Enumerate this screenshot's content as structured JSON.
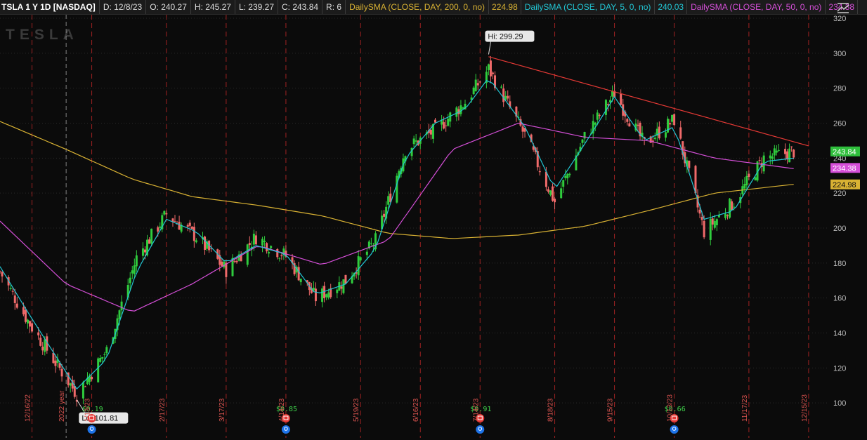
{
  "header": {
    "symbol": "TSLA 1 Y 1D [NASDAQ]",
    "date": "D: 12/8/23",
    "open": "O: 240.27",
    "high": "H: 245.27",
    "low": "L: 239.27",
    "close": "C: 243.84",
    "range": "R: 6",
    "sma200_label": "DailySMA (CLOSE, DAY, 200, 0, no)",
    "sma200_value": "224.98",
    "sma5_label": "DailySMA (CLOSE, DAY, 5, 0, no)",
    "sma5_value": "240.03",
    "sma50_label": "DailySMA (CLOSE, DAY, 50, 0, no)",
    "sma50_value": "234.38"
  },
  "watermark": "TESLA",
  "colors": {
    "up": "#2fcc3d",
    "down": "#f06a6a",
    "sma5": "#22c6d4",
    "sma50": "#d54fd8",
    "sma200": "#d9b233",
    "trendline": "#e53935",
    "grid_vertical": "#c62828",
    "price_badge": "#2fbf3c"
  },
  "chart_data": {
    "type": "line",
    "ylim": [
      80,
      320
    ],
    "yticks": [
      100,
      120,
      140,
      160,
      180,
      200,
      220,
      240,
      260,
      280,
      300,
      320
    ],
    "x_date_labels": [
      "12/16/22",
      "2022 year",
      "1/13/23",
      "2/17/23",
      "3/17/23",
      "4/14/23",
      "5/19/23",
      "6/16/23",
      "7/14/23",
      "8/18/23",
      "9/15/23",
      "10/13/23",
      "11/17/23",
      "12/15/23"
    ],
    "annotations": [
      {
        "label": "Hi: 299.29",
        "date": "7/18/23",
        "value": 299.29
      },
      {
        "label": "Lo: 101.81",
        "date": "1/6/23",
        "value": 101.81
      }
    ],
    "price_badges": [
      {
        "value": "243.84",
        "series": "close"
      },
      {
        "value": "234.38",
        "series": "sma50"
      },
      {
        "value": "224.98",
        "series": "sma200"
      }
    ],
    "dividends": [
      {
        "label": "$0.19",
        "date": "1/13/23"
      },
      {
        "label": "$0.85",
        "date": "4/14/23"
      },
      {
        "label": "$0.91",
        "date": "7/14/23"
      },
      {
        "label": "$0.66",
        "date": "10/13/23"
      }
    ],
    "trendline": {
      "from": {
        "date": "7/18/23",
        "value": 298
      },
      "to": {
        "date": "12/15/23",
        "value": 247
      }
    },
    "series": [
      {
        "name": "DailySMA (CLOSE, DAY, 200, 0, no)",
        "key": "sma200",
        "x": [
          "12/1/22",
          "1/1/23",
          "2/1/23",
          "3/1/23",
          "4/1/23",
          "5/1/23",
          "6/1/23",
          "7/1/23",
          "8/1/23",
          "9/1/23",
          "10/1/23",
          "11/1/23",
          "12/8/23"
        ],
        "values": [
          261,
          245,
          228,
          218,
          213,
          207,
          197,
          194,
          196,
          201,
          210,
          220,
          225
        ]
      },
      {
        "name": "DailySMA (CLOSE, DAY, 50, 0, no)",
        "key": "sma50",
        "x": [
          "12/1/22",
          "1/1/23",
          "2/1/23",
          "3/1/23",
          "4/1/23",
          "5/1/23",
          "6/1/23",
          "7/1/23",
          "8/1/23",
          "9/1/23",
          "10/1/23",
          "11/1/23",
          "12/8/23"
        ],
        "values": [
          204,
          168,
          152,
          168,
          190,
          179,
          193,
          245,
          260,
          252,
          250,
          240,
          234
        ]
      },
      {
        "name": "DailySMA (CLOSE, DAY, 5, 0, no)",
        "key": "sma5",
        "x": [
          "12/1/22",
          "12/15/22",
          "1/6/23",
          "1/20/23",
          "2/3/23",
          "2/17/23",
          "3/3/23",
          "3/17/23",
          "3/31/23",
          "4/14/23",
          "4/28/23",
          "5/12/23",
          "5/26/23",
          "6/9/23",
          "6/23/23",
          "7/7/23",
          "7/18/23",
          "8/4/23",
          "8/18/23",
          "9/1/23",
          "9/15/23",
          "9/29/23",
          "10/13/23",
          "10/27/23",
          "11/10/23",
          "11/24/23",
          "12/8/23"
        ],
        "values": [
          178,
          150,
          108,
          125,
          175,
          205,
          198,
          180,
          190,
          185,
          162,
          168,
          188,
          240,
          260,
          268,
          286,
          258,
          222,
          248,
          275,
          250,
          258,
          205,
          210,
          238,
          240
        ]
      },
      {
        "name": "Close",
        "key": "close",
        "x": [
          "12/1/22",
          "12/15/22",
          "1/6/23",
          "1/20/23",
          "2/3/23",
          "2/17/23",
          "3/3/23",
          "3/17/23",
          "3/31/23",
          "4/14/23",
          "4/28/23",
          "5/12/23",
          "5/26/23",
          "6/9/23",
          "6/23/23",
          "7/7/23",
          "7/18/23",
          "8/4/23",
          "8/18/23",
          "9/1/23",
          "9/15/23",
          "9/29/23",
          "10/13/23",
          "10/27/23",
          "11/10/23",
          "11/24/23",
          "12/8/23"
        ],
        "values": [
          175,
          145,
          105,
          130,
          183,
          208,
          195,
          176,
          195,
          184,
          160,
          170,
          193,
          245,
          256,
          272,
          291,
          253,
          215,
          252,
          277,
          248,
          262,
          198,
          215,
          240,
          243.84
        ]
      }
    ]
  }
}
